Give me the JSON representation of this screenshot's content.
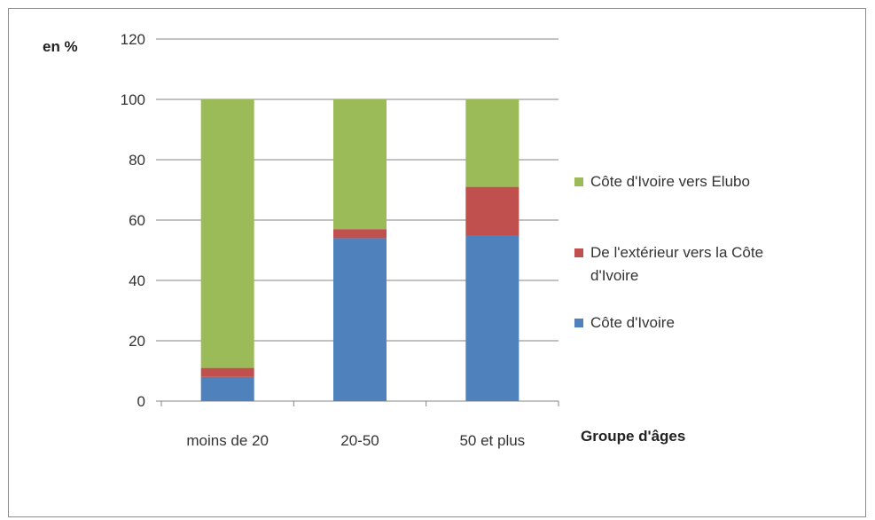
{
  "chart_data": {
    "type": "bar",
    "stacked": true,
    "categories": [
      "moins de 20",
      "20-50",
      "50 et plus"
    ],
    "series": [
      {
        "name": "Côte d'Ivoire",
        "color": "#4f81bd",
        "values": [
          8,
          54,
          55
        ]
      },
      {
        "name": "De l'extérieur vers la Côte d'Ivoire",
        "color": "#c0504d",
        "values": [
          3,
          3,
          16
        ]
      },
      {
        "name": "Côte d'Ivoire vers Elubo",
        "color": "#9bbb59",
        "values": [
          89,
          43,
          29
        ]
      }
    ],
    "ylabel": "en %",
    "xlabel": "Groupe d'âges",
    "ylim": [
      0,
      120
    ],
    "yticks": [
      "0",
      "20",
      "40",
      "60",
      "80",
      "100",
      "120"
    ],
    "grid": true,
    "legend_position": "right"
  }
}
